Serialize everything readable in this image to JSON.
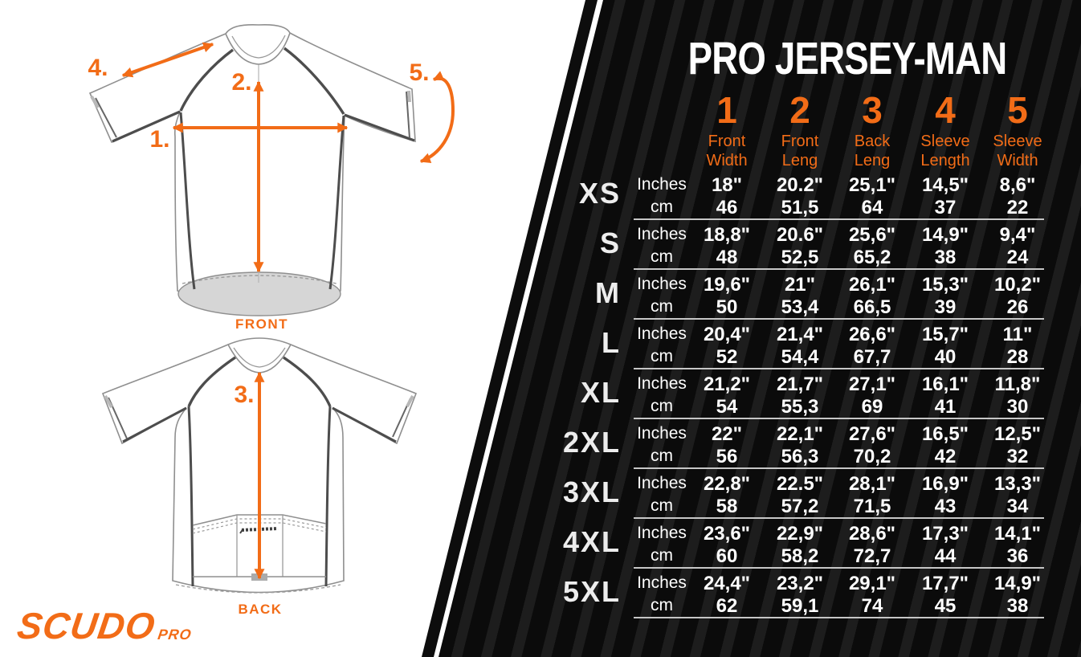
{
  "chart_data": {
    "type": "table",
    "title": "PRO JERSEY-MAN",
    "unit_rows": [
      "Inches",
      "cm"
    ],
    "measure_columns": [
      {
        "num": "1",
        "label": [
          "Front",
          "Width"
        ]
      },
      {
        "num": "2",
        "label": [
          "Front",
          "Leng"
        ]
      },
      {
        "num": "3",
        "label": [
          "Back",
          "Leng"
        ]
      },
      {
        "num": "4",
        "label": [
          "Sleeve",
          "Length"
        ]
      },
      {
        "num": "5",
        "label": [
          "Sleeve",
          "Width"
        ]
      }
    ],
    "rows": [
      {
        "size": "XS",
        "inches": [
          "18\"",
          "20.2\"",
          "25,1\"",
          "14,5\"",
          "8,6\""
        ],
        "cm": [
          "46",
          "51,5",
          "64",
          "37",
          "22"
        ]
      },
      {
        "size": "S",
        "inches": [
          "18,8\"",
          "20.6\"",
          "25,6\"",
          "14,9\"",
          "9,4\""
        ],
        "cm": [
          "48",
          "52,5",
          "65,2",
          "38",
          "24"
        ]
      },
      {
        "size": "M",
        "inches": [
          "19,6\"",
          "21\"",
          "26,1\"",
          "15,3\"",
          "10,2\""
        ],
        "cm": [
          "50",
          "53,4",
          "66,5",
          "39",
          "26"
        ]
      },
      {
        "size": "L",
        "inches": [
          "20,4\"",
          "21,4\"",
          "26,6\"",
          "15,7\"",
          "11\""
        ],
        "cm": [
          "52",
          "54,4",
          "67,7",
          "40",
          "28"
        ]
      },
      {
        "size": "XL",
        "inches": [
          "21,2\"",
          "21,7\"",
          "27,1\"",
          "16,1\"",
          "11,8\""
        ],
        "cm": [
          "54",
          "55,3",
          "69",
          "41",
          "30"
        ]
      },
      {
        "size": "2XL",
        "inches": [
          "22\"",
          "22,1\"",
          "27,6\"",
          "16,5\"",
          "12,5\""
        ],
        "cm": [
          "56",
          "56,3",
          "70,2",
          "42",
          "32"
        ]
      },
      {
        "size": "3XL",
        "inches": [
          "22,8\"",
          "22.5\"",
          "28,1\"",
          "16,9\"",
          "13,3\""
        ],
        "cm": [
          "58",
          "57,2",
          "71,5",
          "43",
          "34"
        ]
      },
      {
        "size": "4XL",
        "inches": [
          "23,6\"",
          "22,9\"",
          "28,6\"",
          "17,3\"",
          "14,1\""
        ],
        "cm": [
          "60",
          "58,2",
          "72,7",
          "44",
          "36"
        ]
      },
      {
        "size": "5XL",
        "inches": [
          "24,4\"",
          "23,2\"",
          "29,1\"",
          "17,7\"",
          "14,9\""
        ],
        "cm": [
          "62",
          "59,1",
          "74",
          "45",
          "38"
        ]
      }
    ]
  },
  "diagram": {
    "front_label": "FRONT",
    "back_label": "BACK",
    "annotations": {
      "a1": "1.",
      "a2": "2.",
      "a3": "3.",
      "a4": "4.",
      "a5": "5."
    }
  },
  "brand": {
    "logo_main": "SCUDO",
    "logo_sub": "PRO"
  },
  "colors": {
    "accent_orange": "#f26c17",
    "panel_black": "#0b0b0b",
    "panel_stripe": "#1d1d1d",
    "separator_gray": "#c6c6c6",
    "text_white": "#ffffff",
    "hem_gray": "#d6d6d6"
  }
}
